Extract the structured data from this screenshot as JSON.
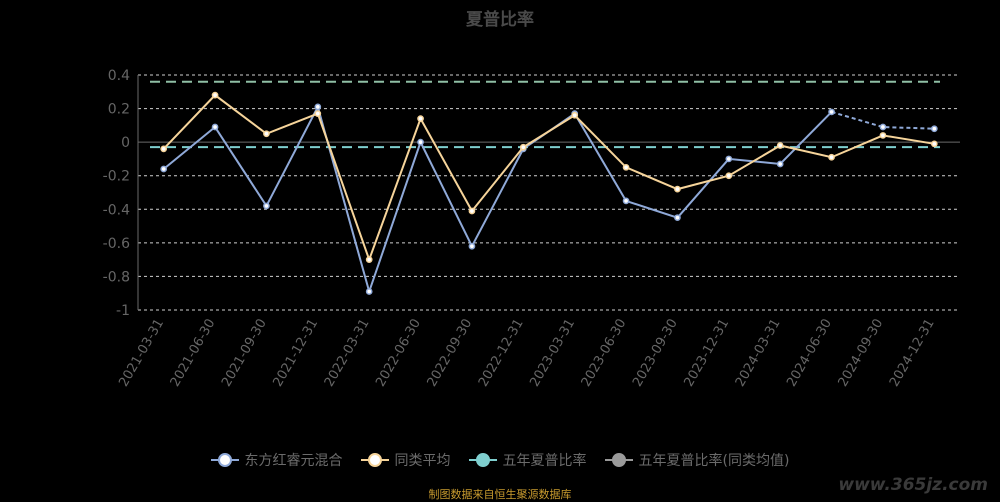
{
  "chart_data": {
    "type": "line",
    "title": "夏普比率",
    "categories": [
      "2021-03-31",
      "2021-06-30",
      "2021-09-30",
      "2021-12-31",
      "2022-03-31",
      "2022-06-30",
      "2022-09-30",
      "2022-12-31",
      "2023-03-31",
      "2023-06-30",
      "2023-09-30",
      "2023-12-31",
      "2024-03-31",
      "2024-06-30",
      "2024-09-30",
      "2024-12-31"
    ],
    "y_ticks": [
      "0.4",
      "0.2",
      "0",
      "-0.2",
      "-0.4",
      "-0.6",
      "-0.8",
      "-1"
    ],
    "ylim": [
      -1,
      0.4
    ],
    "grid": true,
    "legend_position": "bottom",
    "series": [
      {
        "name": "东方红睿元混合",
        "color": "#8fa9d8",
        "values": [
          -0.16,
          0.09,
          -0.38,
          0.21,
          -0.89,
          0.0,
          -0.62,
          -0.04,
          0.17,
          -0.35,
          -0.45,
          -0.1,
          -0.13,
          0.18,
          0.09,
          0.08
        ],
        "dashed_from_index": 13
      },
      {
        "name": "同类平均",
        "color": "#f6d49a",
        "values": [
          -0.04,
          0.28,
          0.05,
          0.17,
          -0.7,
          0.14,
          -0.41,
          -0.03,
          0.16,
          -0.15,
          -0.28,
          -0.2,
          -0.02,
          -0.09,
          0.04,
          -0.01
        ]
      },
      {
        "name": "五年夏普比率",
        "color": "#7fcfcf",
        "value": -0.03,
        "style": "dashed-hline"
      },
      {
        "name": "五年夏普比率(同类均值)",
        "color": "#9a9a9a",
        "value": 0.36,
        "style": "dashed-hline",
        "render_color": "#8fbfa5"
      }
    ]
  },
  "footer": {
    "source": "制图数据来自恒生聚源数据库",
    "watermark": "www.365jz.com"
  }
}
